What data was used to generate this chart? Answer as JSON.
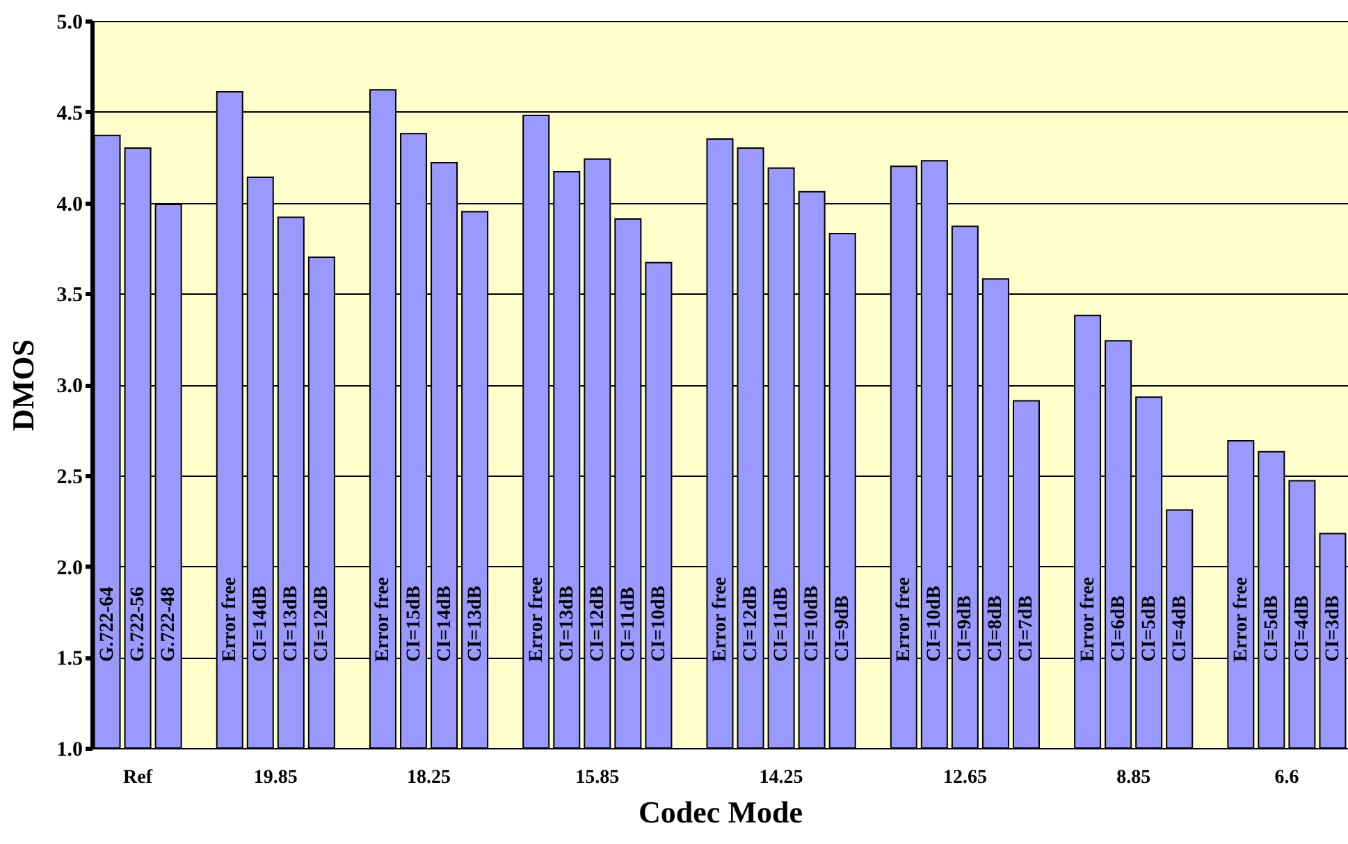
{
  "chart_data": {
    "type": "bar",
    "xlabel": "Codec Mode",
    "ylabel": "DMOS",
    "categories": [
      "G.722-64",
      "G.722-56",
      "G.722-48",
      null,
      "Error free",
      "CI=14dB",
      "CI=13dB",
      "CI=12dB",
      null,
      "Error free",
      "CI=15dB",
      "CI=14dB",
      "CI=13dB",
      null,
      "Error free",
      "CI=13dB",
      "CI=12dB",
      "CI=11dB",
      "CI=10dB",
      null,
      "Error free",
      "CI=12dB",
      "CI=11dB",
      "CI=10dB",
      "CI=9dB",
      null,
      "Error free",
      "CI=10dB",
      "CI=9dB",
      "CI=8dB",
      "CI=7dB",
      null,
      "Error free",
      "CI=6dB",
      "CI=5dB",
      "CI=4dB",
      null,
      "Error free",
      "CI=5dB",
      "CI=4dB",
      "CI=3dB"
    ],
    "values": [
      4.37,
      4.3,
      3.99,
      null,
      4.61,
      4.14,
      3.92,
      3.7,
      null,
      4.62,
      4.38,
      4.22,
      3.95,
      null,
      4.48,
      4.17,
      4.24,
      3.91,
      3.67,
      null,
      4.35,
      4.3,
      4.19,
      4.06,
      3.83,
      null,
      4.2,
      4.23,
      3.87,
      3.58,
      2.91,
      null,
      3.38,
      3.24,
      2.93,
      2.31,
      null,
      2.69,
      2.63,
      2.47,
      2.18
    ],
    "color": "#9999ff",
    "ylim": [
      1.0,
      5.0
    ],
    "yticks": [
      {
        "value": 1,
        "label": "1.0"
      },
      {
        "value": 1.5,
        "label": "1.5"
      },
      {
        "value": 2,
        "label": "2.0"
      },
      {
        "value": 2.5,
        "label": "2.5"
      },
      {
        "value": 3,
        "label": "3.0"
      },
      {
        "value": 3.5,
        "label": "3.5"
      },
      {
        "value": 4,
        "label": "4.0"
      },
      {
        "value": 4.5,
        "label": "4.5"
      },
      {
        "value": 5,
        "label": "5.0"
      }
    ],
    "grid": "y",
    "annotations": [
      "Ref",
      "19.85",
      "18.25",
      "15.85",
      "14.25",
      "12.65",
      "8.85",
      "6.6"
    ]
  }
}
